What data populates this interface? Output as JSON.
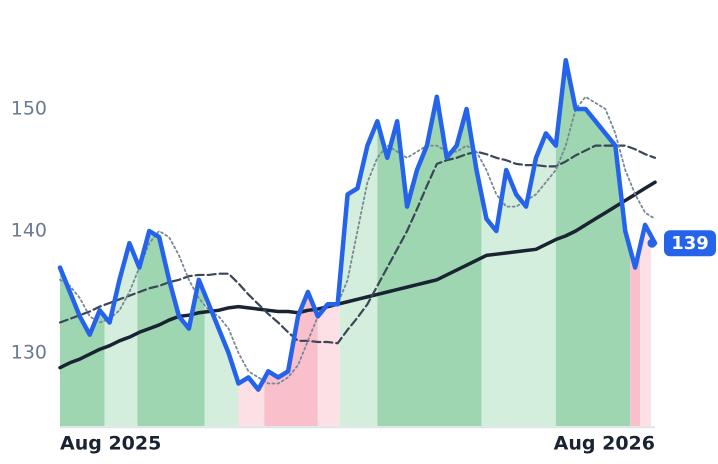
{
  "chart_data": {
    "type": "line",
    "x": [
      0,
      1,
      2,
      3,
      4,
      5,
      6,
      7,
      8,
      9,
      10,
      11,
      12,
      13,
      14,
      15,
      16,
      17,
      18,
      19,
      20,
      21,
      22,
      23,
      24,
      25,
      26,
      27,
      28,
      29,
      30,
      31,
      32,
      33,
      34,
      35,
      36,
      37,
      38,
      39,
      40,
      41,
      42,
      43,
      44,
      45,
      46,
      47,
      48,
      49,
      50,
      51,
      52,
      53,
      54,
      55,
      56,
      57,
      58,
      59,
      60
    ],
    "xlim": [
      0,
      60
    ],
    "xticks": [
      {
        "value": 0,
        "label": "Aug 2025"
      },
      {
        "value": 60,
        "label": "Aug 2026"
      }
    ],
    "ylim": [
      124,
      156
    ],
    "yticks": [
      130,
      140,
      150
    ],
    "series": [
      {
        "color": "#2563eb",
        "style": "solid",
        "width": 4.5,
        "values": [
          137,
          135,
          133,
          131.5,
          133.5,
          132.5,
          136,
          139,
          137,
          140,
          139.5,
          136,
          133,
          132,
          136,
          134,
          132,
          130,
          127.5,
          128,
          127,
          128.5,
          128,
          128.5,
          133,
          135,
          133,
          134,
          134,
          143,
          143.5,
          147,
          149,
          146,
          149,
          142,
          145,
          147,
          151,
          146,
          147,
          150,
          145,
          141,
          140,
          145,
          143,
          142,
          146,
          148,
          147,
          154,
          150,
          150,
          149,
          148,
          147,
          140,
          137,
          140.5,
          139
        ]
      },
      {
        "color": "#1a2332",
        "style": "solid",
        "width": 3.5,
        "values": [
          128.8,
          129.2,
          129.5,
          129.9,
          130.3,
          130.6,
          131,
          131.3,
          131.7,
          132,
          132.3,
          132.7,
          133,
          133.1,
          133.3,
          133.4,
          133.5,
          133.7,
          133.8,
          133.7,
          133.6,
          133.5,
          133.4,
          133.4,
          133.3,
          133.5,
          133.6,
          133.8,
          134,
          134.2,
          134.4,
          134.6,
          134.8,
          135,
          135.2,
          135.4,
          135.6,
          135.8,
          136,
          136.4,
          136.8,
          137.2,
          137.6,
          138,
          138.1,
          138.2,
          138.3,
          138.4,
          138.5,
          138.9,
          139.3,
          139.6,
          140,
          140.5,
          141,
          141.5,
          142,
          142.5,
          143,
          143.5,
          144
        ]
      },
      {
        "color": "#3b4656",
        "style": "dashed",
        "width": 2.2,
        "values": [
          132.5,
          132.8,
          133.1,
          133.4,
          133.8,
          134.1,
          134.4,
          134.7,
          135,
          135.3,
          135.5,
          135.8,
          136,
          136.3,
          136.4,
          136.4,
          136.5,
          136.5,
          135.7,
          134.8,
          134,
          133.2,
          132.5,
          131.7,
          131,
          131,
          130.9,
          130.9,
          130.8,
          131.9,
          132.9,
          134,
          135.5,
          137,
          138.5,
          140,
          141.8,
          143.7,
          145.5,
          145.8,
          146,
          146.3,
          146.5,
          146.3,
          146,
          145.8,
          145.5,
          145.4,
          145.4,
          145.3,
          145.3,
          145.7,
          146.2,
          146.6,
          147,
          147,
          147,
          147,
          146.7,
          146.3,
          146
        ]
      },
      {
        "color": "#7a8799",
        "style": "dotted",
        "width": 1.8,
        "values": [
          136,
          135.5,
          134.5,
          133,
          132.5,
          132.8,
          133.5,
          135,
          137,
          139,
          140,
          139.5,
          138,
          136,
          134.5,
          133.5,
          133,
          132,
          130,
          128.5,
          128,
          127.5,
          127.5,
          128,
          129,
          131,
          133,
          134,
          134,
          136,
          140,
          144,
          146,
          147,
          146.5,
          146,
          146.5,
          147,
          147,
          146.5,
          146.5,
          147,
          146.5,
          145,
          143,
          142,
          142,
          142.5,
          143,
          144,
          145,
          147,
          150,
          151,
          150.5,
          150,
          148,
          145,
          143,
          141.5,
          141
        ]
      }
    ],
    "bands": [
      {
        "from": 0,
        "to": 4.5,
        "color": "#9dd6b1"
      },
      {
        "from": 4.5,
        "to": 7.8,
        "color": "#d3eedc"
      },
      {
        "from": 7.8,
        "to": 14.6,
        "color": "#9dd6b1"
      },
      {
        "from": 14.6,
        "to": 18,
        "color": "#d3eedc"
      },
      {
        "from": 18,
        "to": 20.6,
        "color": "#fde0e5"
      },
      {
        "from": 20.6,
        "to": 26,
        "color": "#f9c0cb"
      },
      {
        "from": 26,
        "to": 28.2,
        "color": "#fde0e5"
      },
      {
        "from": 28.2,
        "to": 32,
        "color": "#d3eedc"
      },
      {
        "from": 32,
        "to": 42.5,
        "color": "#9dd6b1"
      },
      {
        "from": 42.5,
        "to": 50,
        "color": "#d3eedc"
      },
      {
        "from": 50,
        "to": 57.5,
        "color": "#9dd6b1"
      },
      {
        "from": 57.5,
        "to": 58.5,
        "color": "#f9c0cb"
      },
      {
        "from": 58.5,
        "to": 59.6,
        "color": "#fde0e5"
      }
    ],
    "last_value": 139
  }
}
